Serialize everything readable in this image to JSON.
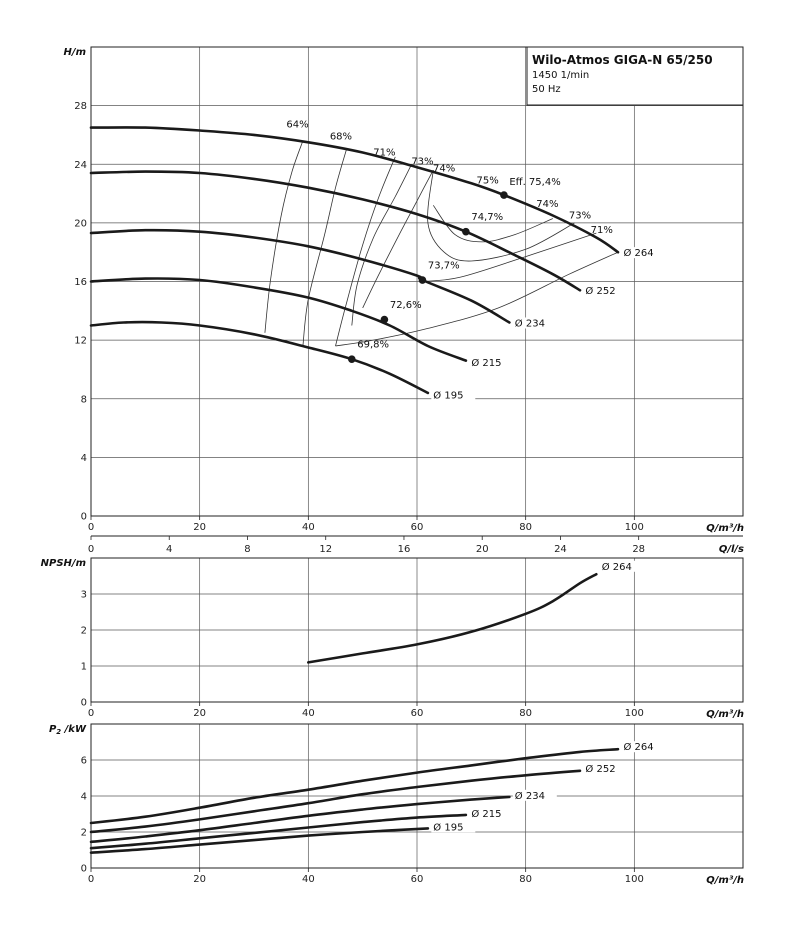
{
  "title_box": {
    "title": "Wilo-Atmos GIGA-N 65/250",
    "speed": "1450 1/min",
    "frequency": "50 Hz"
  },
  "colors": {
    "curve": "#1a1a1a",
    "grid": "#5a5a5a",
    "frame": "#222222"
  },
  "chart_data": [
    {
      "type": "line",
      "panel": "head",
      "ylabel": "H/m",
      "xlabel": "Q/m³/h",
      "xlim": [
        0,
        120
      ],
      "ylim": [
        0,
        32
      ],
      "x_ticks": [
        0,
        20,
        40,
        60,
        80,
        100
      ],
      "y_ticks": [
        0,
        4,
        8,
        12,
        16,
        20,
        24,
        28
      ],
      "secondary_x": {
        "label": "Q/l/s",
        "ticks": [
          0,
          4,
          8,
          12,
          16,
          20,
          24,
          28
        ]
      },
      "series": [
        {
          "name": "Ø 264",
          "points": [
            [
              0,
              26.5
            ],
            [
              10,
              26.5
            ],
            [
              20,
              26.3
            ],
            [
              30,
              26.0
            ],
            [
              40,
              25.5
            ],
            [
              50,
              24.8
            ],
            [
              60,
              23.8
            ],
            [
              70,
              22.7
            ],
            [
              76,
              21.9
            ],
            [
              85,
              20.5
            ],
            [
              93,
              19.0
            ],
            [
              97,
              18.0
            ]
          ]
        },
        {
          "name": "Ø 252",
          "points": [
            [
              0,
              23.4
            ],
            [
              10,
              23.5
            ],
            [
              20,
              23.4
            ],
            [
              30,
              23.0
            ],
            [
              40,
              22.4
            ],
            [
              50,
              21.6
            ],
            [
              60,
              20.6
            ],
            [
              69,
              19.4
            ],
            [
              78,
              17.8
            ],
            [
              85,
              16.5
            ],
            [
              90,
              15.4
            ]
          ]
        },
        {
          "name": "Ø 234",
          "points": [
            [
              0,
              19.3
            ],
            [
              10,
              19.5
            ],
            [
              20,
              19.4
            ],
            [
              30,
              19.0
            ],
            [
              40,
              18.4
            ],
            [
              50,
              17.5
            ],
            [
              60,
              16.4
            ],
            [
              61,
              16.1
            ],
            [
              70,
              14.7
            ],
            [
              77,
              13.2
            ]
          ]
        },
        {
          "name": "Ø 215",
          "points": [
            [
              0,
              16.0
            ],
            [
              10,
              16.2
            ],
            [
              20,
              16.1
            ],
            [
              30,
              15.6
            ],
            [
              40,
              14.9
            ],
            [
              48,
              14.0
            ],
            [
              55,
              13.0
            ],
            [
              62,
              11.6
            ],
            [
              69,
              10.6
            ]
          ]
        },
        {
          "name": "Ø 195",
          "points": [
            [
              0,
              13.0
            ],
            [
              6,
              13.2
            ],
            [
              13,
              13.2
            ],
            [
              20,
              13.0
            ],
            [
              30,
              12.4
            ],
            [
              40,
              11.5
            ],
            [
              48,
              10.7
            ],
            [
              55,
              9.7
            ],
            [
              62,
              8.4
            ]
          ]
        }
      ],
      "efficiency_lines": [
        {
          "label": "64%",
          "points": [
            [
              32,
              12.5
            ],
            [
              33,
              16.0
            ],
            [
              35,
              20.5
            ],
            [
              37,
              23.5
            ],
            [
              39,
              25.6
            ]
          ]
        },
        {
          "label": "68%",
          "points": [
            [
              39,
              11.6
            ],
            [
              40,
              14.8
            ],
            [
              43,
              19.2
            ],
            [
              45,
              22.4
            ],
            [
              47,
              25.0
            ]
          ]
        },
        {
          "label": "71%",
          "points": [
            [
              45,
              11.6
            ],
            [
              47,
              14.5
            ],
            [
              50,
              18.5
            ],
            [
              53,
              21.8
            ],
            [
              56,
              24.5
            ]
          ]
        },
        {
          "label": "73%",
          "points": [
            [
              48,
              13.0
            ],
            [
              49,
              15.8
            ],
            [
              52,
              19.0
            ],
            [
              56,
              21.8
            ],
            [
              59,
              24.0
            ]
          ]
        },
        {
          "label": "74%",
          "points": [
            [
              50,
              14.2
            ],
            [
              53,
              16.5
            ],
            [
              57,
              19.4
            ],
            [
              60,
              21.5
            ],
            [
              63,
              23.6
            ]
          ]
        },
        {
          "label": "75%",
          "points": [
            [
              63,
              21.2
            ],
            [
              67,
              19.2
            ],
            [
              72,
              18.7
            ],
            [
              78,
              19.2
            ],
            [
              85,
              20.3
            ]
          ]
        },
        {
          "label": "74%",
          "points": [
            [
              63,
              23.6
            ],
            [
              62,
              20.0
            ],
            [
              65,
              18.0
            ],
            [
              70,
              17.4
            ],
            [
              80,
              18.2
            ],
            [
              89,
              20.0
            ]
          ]
        },
        {
          "label": "73%",
          "points": [
            [
              61,
              16.0
            ],
            [
              68,
              16.3
            ],
            [
              80,
              17.7
            ],
            [
              93,
              19.3
            ]
          ]
        },
        {
          "label": "71%",
          "points": [
            [
              45,
              11.6
            ],
            [
              52,
              12.0
            ],
            [
              62,
              12.8
            ],
            [
              75,
              14.2
            ],
            [
              88,
              16.5
            ],
            [
              97,
              18.0
            ]
          ]
        }
      ],
      "efficiency_label_positions": [
        [
          38,
          26.5
        ],
        [
          46,
          25.7
        ],
        [
          54,
          24.6
        ],
        [
          61,
          24.0
        ],
        [
          65,
          23.5
        ],
        [
          73,
          22.7
        ],
        [
          84,
          21.1
        ],
        [
          90,
          20.3
        ],
        [
          94,
          19.3
        ],
        [
          91,
          17.6
        ]
      ],
      "bep_points": [
        {
          "label": "Eff. 75,4%",
          "x": 76,
          "y": 21.9,
          "label_at": [
            77,
            22.6
          ]
        },
        {
          "label": "74,7%",
          "x": 69,
          "y": 19.4,
          "label_at": [
            70,
            20.2
          ]
        },
        {
          "label": "73,7%",
          "x": 61,
          "y": 16.1,
          "label_at": [
            62,
            16.9
          ]
        },
        {
          "label": "72,6%",
          "x": 54,
          "y": 13.4,
          "label_at": [
            55,
            14.2
          ]
        },
        {
          "label": "69,8%",
          "x": 48,
          "y": 10.7,
          "label_at": [
            49,
            11.5
          ]
        }
      ],
      "end_label_positions": [
        [
          98,
          17.8
        ],
        [
          91,
          15.2
        ],
        [
          78,
          13.0
        ],
        [
          70,
          10.3
        ],
        [
          63,
          8.1
        ]
      ]
    },
    {
      "type": "line",
      "panel": "npsh",
      "ylabel": "NPSH/m",
      "xlabel": "Q/m³/h",
      "xlim": [
        0,
        120
      ],
      "ylim": [
        0,
        4
      ],
      "x_ticks": [
        0,
        20,
        40,
        60,
        80,
        100
      ],
      "y_ticks": [
        0,
        1,
        2,
        3
      ],
      "series": [
        {
          "name": "Ø 264",
          "points": [
            [
              40,
              1.1
            ],
            [
              50,
              1.35
            ],
            [
              60,
              1.6
            ],
            [
              70,
              1.95
            ],
            [
              80,
              2.45
            ],
            [
              85,
              2.8
            ],
            [
              90,
              3.3
            ],
            [
              93,
              3.55
            ]
          ]
        }
      ],
      "end_label_positions": [
        [
          94,
          3.7
        ]
      ]
    },
    {
      "type": "line",
      "panel": "power",
      "ylabel": "P2/kW",
      "xlabel": "Q/m³/h",
      "xlim": [
        0,
        120
      ],
      "ylim": [
        0,
        8
      ],
      "x_ticks": [
        0,
        20,
        40,
        60,
        80,
        100
      ],
      "y_ticks": [
        0,
        2,
        4,
        6
      ],
      "series": [
        {
          "name": "Ø 264",
          "points": [
            [
              0,
              2.5
            ],
            [
              10,
              2.85
            ],
            [
              20,
              3.35
            ],
            [
              30,
              3.9
            ],
            [
              40,
              4.35
            ],
            [
              50,
              4.85
            ],
            [
              60,
              5.3
            ],
            [
              70,
              5.7
            ],
            [
              80,
              6.1
            ],
            [
              90,
              6.45
            ],
            [
              97,
              6.6
            ]
          ]
        },
        {
          "name": "Ø 252",
          "points": [
            [
              0,
              2.0
            ],
            [
              10,
              2.3
            ],
            [
              20,
              2.7
            ],
            [
              30,
              3.15
            ],
            [
              40,
              3.6
            ],
            [
              50,
              4.1
            ],
            [
              60,
              4.5
            ],
            [
              70,
              4.85
            ],
            [
              80,
              5.15
            ],
            [
              90,
              5.4
            ]
          ]
        },
        {
          "name": "Ø 234",
          "points": [
            [
              0,
              1.45
            ],
            [
              10,
              1.75
            ],
            [
              20,
              2.1
            ],
            [
              30,
              2.5
            ],
            [
              40,
              2.9
            ],
            [
              50,
              3.25
            ],
            [
              60,
              3.55
            ],
            [
              70,
              3.8
            ],
            [
              77,
              3.95
            ]
          ]
        },
        {
          "name": "Ø 215",
          "points": [
            [
              0,
              1.1
            ],
            [
              10,
              1.35
            ],
            [
              20,
              1.65
            ],
            [
              30,
              1.95
            ],
            [
              40,
              2.25
            ],
            [
              50,
              2.55
            ],
            [
              60,
              2.8
            ],
            [
              69,
              2.95
            ]
          ]
        },
        {
          "name": "Ø 195",
          "points": [
            [
              0,
              0.85
            ],
            [
              10,
              1.05
            ],
            [
              20,
              1.3
            ],
            [
              30,
              1.55
            ],
            [
              40,
              1.8
            ],
            [
              50,
              2.0
            ],
            [
              62,
              2.2
            ]
          ]
        }
      ],
      "end_label_positions": [
        [
          98,
          6.6
        ],
        [
          91,
          5.4
        ],
        [
          78,
          3.9
        ],
        [
          70,
          2.9
        ],
        [
          63,
          2.15
        ]
      ]
    }
  ]
}
